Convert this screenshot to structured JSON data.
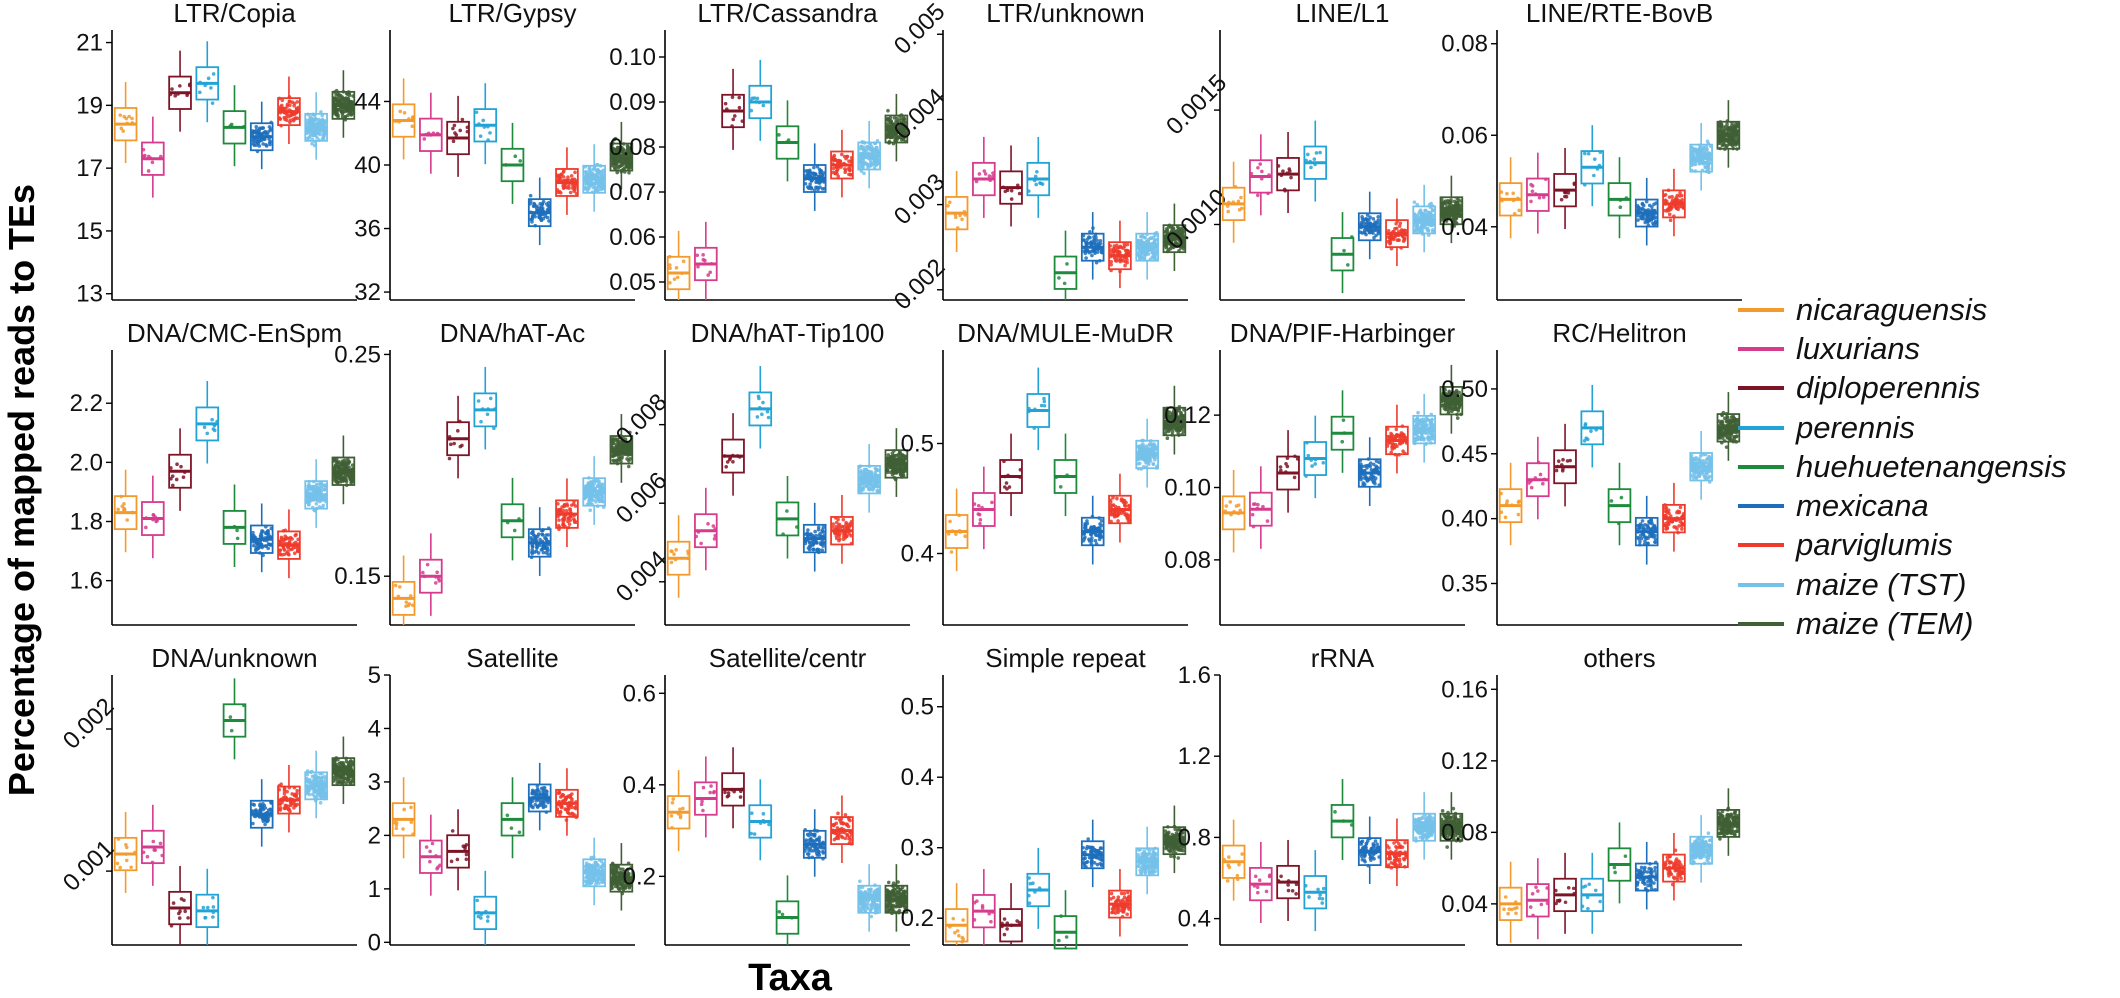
{
  "figure": {
    "ylabel": "Percentage of mapped reads to TEs",
    "xlabel": "Taxa"
  },
  "legend": {
    "taxa": [
      {
        "name": "nicaraguensis",
        "color": "#f39a2c"
      },
      {
        "name": "luxurians",
        "color": "#d63b8e"
      },
      {
        "name": "diploperennis",
        "color": "#7d1426"
      },
      {
        "name": "perennis",
        "color": "#22a3d6"
      },
      {
        "name": "huehuetenangensis",
        "color": "#1d8a3c"
      },
      {
        "name": "mexicana",
        "color": "#1d6fbc"
      },
      {
        "name": "parviglumis",
        "color": "#ee3b2b"
      },
      {
        "name": "maize (TST)",
        "color": "#74c1ea"
      },
      {
        "name": "maize (TEM)",
        "color": "#3f5f35"
      }
    ]
  },
  "chart_data": [
    {
      "type": "box",
      "title": "LTR/Copia",
      "ylim": [
        12.8,
        21.4
      ],
      "yticks": [
        "13",
        "15",
        "17",
        "19",
        "21"
      ],
      "tick_values": [
        13,
        15,
        17,
        19,
        21
      ],
      "medians": [
        18.4,
        17.3,
        19.4,
        19.7,
        18.3,
        18.0,
        18.8,
        18.3,
        19.0
      ]
    },
    {
      "type": "box",
      "title": "LTR/Gypsy",
      "ylim": [
        31.5,
        48.5
      ],
      "yticks": [
        "32",
        "36",
        "40",
        "44"
      ],
      "tick_values": [
        32,
        36,
        40,
        44
      ],
      "medians": [
        42.8,
        41.9,
        41.7,
        42.5,
        40.0,
        37.0,
        38.9,
        39.1,
        40.5
      ]
    },
    {
      "type": "box",
      "title": "LTR/Cassandra",
      "ylim": [
        0.046,
        0.106
      ],
      "yticks": [
        "0.05",
        "0.06",
        "0.07",
        "0.08",
        "0.09",
        "0.10"
      ],
      "tick_values": [
        0.05,
        0.06,
        0.07,
        0.08,
        0.09,
        0.1
      ],
      "medians": [
        0.052,
        0.054,
        0.088,
        0.09,
        0.081,
        0.073,
        0.076,
        0.078,
        0.084
      ]
    },
    {
      "type": "box",
      "title": "LTR/unknown",
      "ylim": [
        0.00188,
        0.00505
      ],
      "yticks": [
        "0.002",
        "0.003",
        "0.004",
        "0.005"
      ],
      "tick_values": [
        0.002,
        0.003,
        0.004,
        0.005
      ],
      "medians": [
        0.0029,
        0.0033,
        0.0032,
        0.0033,
        0.0022,
        0.0025,
        0.0024,
        0.0025,
        0.0026
      ]
    },
    {
      "type": "box",
      "title": "LINE/L1",
      "ylim": [
        0.00067,
        0.00185
      ],
      "yticks": [
        "0.0010",
        "0.0015"
      ],
      "tick_values": [
        0.001,
        0.0015
      ],
      "medians": [
        0.00109,
        0.00121,
        0.00122,
        0.00127,
        0.00087,
        0.00099,
        0.00096,
        0.00102,
        0.00106
      ]
    },
    {
      "type": "box",
      "title": "LINE/RTE-BovB",
      "ylim": [
        0.024,
        0.083
      ],
      "yticks": [
        "0.04",
        "0.06",
        "0.08"
      ],
      "tick_values": [
        0.04,
        0.06,
        0.08
      ],
      "medians": [
        0.046,
        0.047,
        0.048,
        0.053,
        0.046,
        0.043,
        0.045,
        0.055,
        0.06
      ]
    },
    {
      "type": "box",
      "title": "DNA/CMC-EnSpm",
      "ylim": [
        1.45,
        2.38
      ],
      "yticks": [
        "1.6",
        "1.8",
        "2.0",
        "2.2"
      ],
      "tick_values": [
        1.6,
        1.8,
        2.0,
        2.2
      ],
      "medians": [
        1.83,
        1.81,
        1.97,
        2.13,
        1.78,
        1.74,
        1.72,
        1.89,
        1.97
      ]
    },
    {
      "type": "box",
      "title": "DNA/hAT-Ac",
      "ylim": [
        0.128,
        0.252
      ],
      "yticks": [
        "0.15",
        "0.25"
      ],
      "tick_values": [
        0.15,
        0.25
      ],
      "medians": [
        0.14,
        0.15,
        0.212,
        0.225,
        0.175,
        0.165,
        0.178,
        0.188,
        0.207
      ]
    },
    {
      "type": "box",
      "title": "DNA/hAT-Tip100",
      "ylim": [
        0.0029,
        0.0099
      ],
      "yticks": [
        "0.004",
        "0.006",
        "0.008"
      ],
      "tick_values": [
        0.004,
        0.006,
        0.008
      ],
      "medians": [
        0.0046,
        0.0053,
        0.0072,
        0.0084,
        0.0056,
        0.0051,
        0.0053,
        0.0066,
        0.007
      ]
    },
    {
      "type": "box",
      "title": "DNA/MULE-MuDR",
      "ylim": [
        0.335,
        0.585
      ],
      "yticks": [
        "0.4",
        "0.5"
      ],
      "tick_values": [
        0.4,
        0.5
      ],
      "medians": [
        0.42,
        0.44,
        0.47,
        0.53,
        0.47,
        0.42,
        0.44,
        0.49,
        0.52
      ]
    },
    {
      "type": "box",
      "title": "DNA/PIF-Harbinger",
      "ylim": [
        0.062,
        0.138
      ],
      "yticks": [
        "0.08",
        "0.10",
        "0.12"
      ],
      "tick_values": [
        0.08,
        0.1,
        0.12
      ],
      "medians": [
        0.093,
        0.094,
        0.104,
        0.108,
        0.115,
        0.104,
        0.113,
        0.116,
        0.124
      ]
    },
    {
      "type": "box",
      "title": "RC/Helitron",
      "ylim": [
        0.318,
        0.53
      ],
      "yticks": [
        "0.35",
        "0.40",
        "0.45",
        "0.50"
      ],
      "tick_values": [
        0.35,
        0.4,
        0.45,
        0.5
      ],
      "medians": [
        0.41,
        0.43,
        0.44,
        0.47,
        0.41,
        0.39,
        0.4,
        0.44,
        0.47
      ]
    },
    {
      "type": "box",
      "title": "DNA/unknown",
      "ylim": [
        0.00048,
        0.00238
      ],
      "yticks": [
        "0.001",
        "0.002"
      ],
      "tick_values": [
        0.001,
        0.002
      ],
      "medians": [
        0.00112,
        0.00117,
        0.00074,
        0.00072,
        0.00206,
        0.0014,
        0.0015,
        0.0016,
        0.0017
      ]
    },
    {
      "type": "box",
      "title": "Satellite",
      "ylim": [
        -0.05,
        5.0
      ],
      "yticks": [
        "0",
        "1",
        "2",
        "3",
        "4",
        "5"
      ],
      "tick_values": [
        0,
        1,
        2,
        3,
        4,
        5
      ],
      "medians": [
        2.3,
        1.6,
        1.7,
        0.55,
        2.3,
        2.7,
        2.6,
        1.3,
        1.2
      ]
    },
    {
      "type": "box",
      "title": "Satellite/centr",
      "ylim": [
        0.05,
        0.64
      ],
      "yticks": [
        "0.2",
        "0.4",
        "0.6"
      ],
      "tick_values": [
        0.2,
        0.4,
        0.6
      ],
      "medians": [
        0.34,
        0.37,
        0.39,
        0.32,
        0.11,
        0.27,
        0.3,
        0.15,
        0.15
      ]
    },
    {
      "type": "box",
      "title": "Simple repeat",
      "ylim": [
        0.162,
        0.545
      ],
      "yticks": [
        "0.2",
        "0.3",
        "0.4",
        "0.5"
      ],
      "tick_values": [
        0.2,
        0.3,
        0.4,
        0.5
      ],
      "medians": [
        0.19,
        0.21,
        0.19,
        0.24,
        0.18,
        0.29,
        0.22,
        0.28,
        0.31
      ]
    },
    {
      "type": "box",
      "title": "rRNA",
      "ylim": [
        0.27,
        1.6
      ],
      "yticks": [
        "0.4",
        "0.8",
        "1.2",
        "1.6"
      ],
      "tick_values": [
        0.4,
        0.8,
        1.2,
        1.6
      ],
      "medians": [
        0.68,
        0.57,
        0.58,
        0.53,
        0.88,
        0.73,
        0.72,
        0.85,
        0.85
      ]
    },
    {
      "type": "box",
      "title": "others",
      "ylim": [
        0.017,
        0.168
      ],
      "yticks": [
        "0.04",
        "0.08",
        "0.12",
        "0.16"
      ],
      "tick_values": [
        0.04,
        0.08,
        0.12,
        0.16
      ],
      "medians": [
        0.04,
        0.042,
        0.045,
        0.045,
        0.062,
        0.055,
        0.06,
        0.07,
        0.085
      ]
    }
  ]
}
